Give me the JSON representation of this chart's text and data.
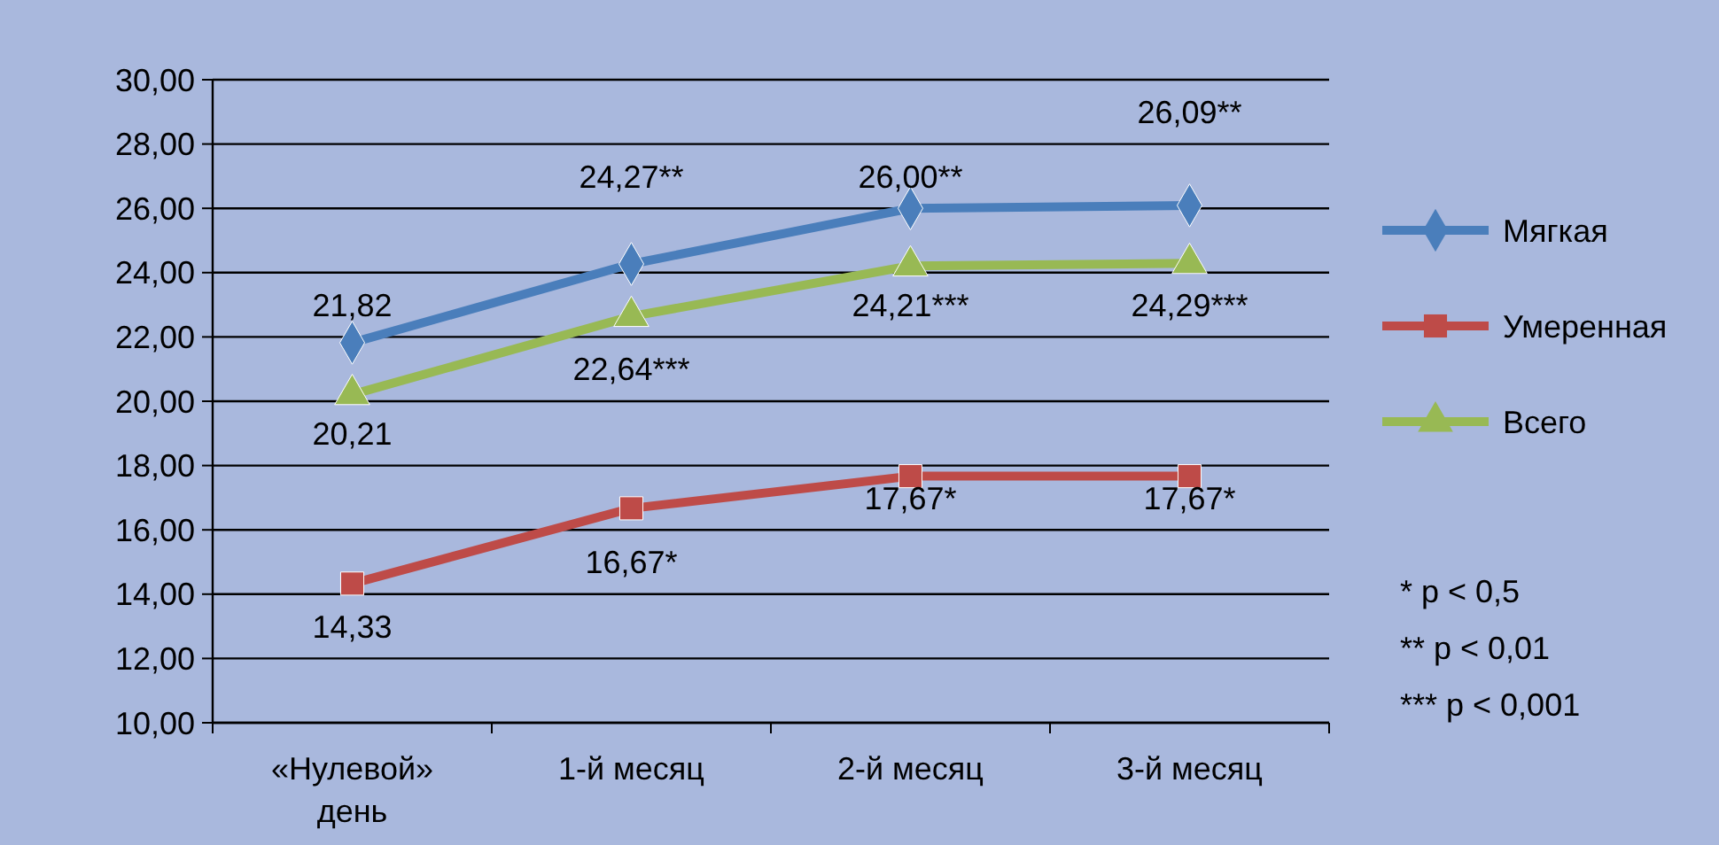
{
  "chart_data": {
    "type": "line",
    "categories": [
      "«Нулевой» день",
      "1-й месяц",
      "2-й месяц",
      "3-й месяц"
    ],
    "series": [
      {
        "name": "Мягкая",
        "color": "#4a7ebb",
        "marker": "diamond",
        "values": [
          21.82,
          24.27,
          26.0,
          26.09
        ],
        "value_labels": [
          "21,82",
          "24,27**",
          "26,00**",
          "26,09**"
        ]
      },
      {
        "name": "Умеренная",
        "color": "#be4b48",
        "marker": "square",
        "values": [
          14.33,
          16.67,
          17.67,
          17.67
        ],
        "value_labels": [
          "14,33",
          "16,67*",
          "17,67*",
          "17,67*"
        ]
      },
      {
        "name": "Всего",
        "color": "#98b954",
        "marker": "triangle",
        "values": [
          20.21,
          22.64,
          24.21,
          24.29
        ],
        "value_labels": [
          "20,21",
          "22,64***",
          "24,21***",
          "24,29***"
        ]
      }
    ],
    "ylim": [
      10,
      30
    ],
    "yticks": [
      {
        "value": 10,
        "label": "10,00"
      },
      {
        "value": 12,
        "label": "12,00"
      },
      {
        "value": 14,
        "label": "14,00"
      },
      {
        "value": 16,
        "label": "16,00"
      },
      {
        "value": 18,
        "label": "18,00"
      },
      {
        "value": 20,
        "label": "20,00"
      },
      {
        "value": 22,
        "label": "22,00"
      },
      {
        "value": 24,
        "label": "24,00"
      },
      {
        "value": 26,
        "label": "26,00"
      },
      {
        "value": 28,
        "label": "28,00"
      },
      {
        "value": 30,
        "label": "30,00"
      }
    ],
    "grid": "y",
    "legend": "right",
    "line_style": "solid",
    "annotations": [
      "* p < 0,5",
      "** p < 0,01",
      "*** p < 0,001"
    ]
  }
}
